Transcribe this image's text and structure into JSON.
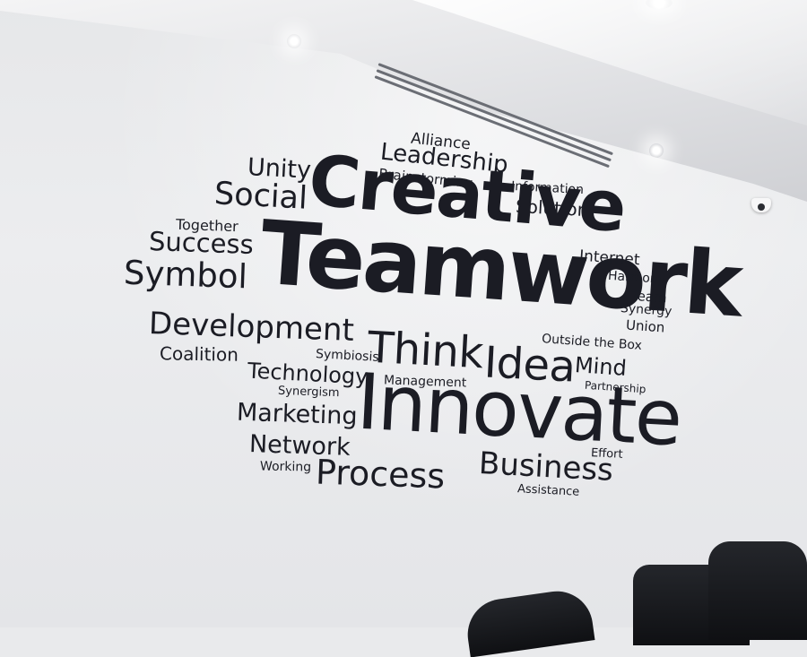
{
  "scene": {
    "description_label": "Office wall with word cloud decal",
    "colors": {
      "wall": "#e9eaec",
      "text": "#1b1c24",
      "chair": "#15161a"
    }
  },
  "words": {
    "alliance": "Alliance",
    "leadership": "Leadership",
    "brainstorming": "Brainstorming",
    "information": "Information",
    "solution": "Solution",
    "unity": "Unity",
    "social": "Social",
    "creative": "Creative",
    "together": "Together",
    "success": "Success",
    "symbol": "Symbol",
    "teamwork": "Teamwork",
    "internet": "Internet",
    "harmony": "Harmony",
    "team": "Team",
    "synergy": "Synergy",
    "union": "Union",
    "development": "Development",
    "coalition": "Coalition",
    "symbiosis": "Symbiosis",
    "think": "Think",
    "idea": "Idea",
    "outside_the_box": "Outside the Box",
    "mind": "Mind",
    "technology": "Technology",
    "management": "Management",
    "partnership": "Partnership",
    "synergism": "Synergism",
    "marketing": "Marketing",
    "innovate": "Innovate",
    "network": "Network",
    "effort": "Effort",
    "working": "Working",
    "process": "Process",
    "business": "Business",
    "assistance": "Assistance"
  }
}
